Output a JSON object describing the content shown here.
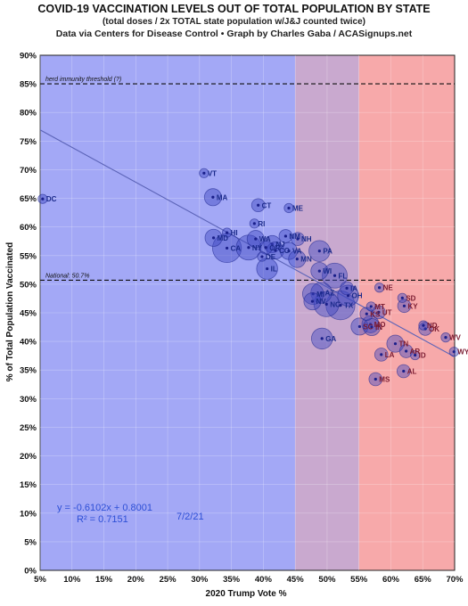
{
  "header": {
    "title": "COVID-19 VACCINATION LEVELS OUT OF TOTAL POPULATION BY STATE",
    "subtitle": "(total doses / 2x TOTAL state population w/J&J counted twice)",
    "source": "Data via Centers for Disease Control • Graph by Charles Gaba / ACASignups.net"
  },
  "colors": {
    "blue_zone": "#a3a8f6",
    "purple_zone": "#c9a9cf",
    "red_zone": "#f7a9aa",
    "bubble_fill": "#3f48c2",
    "bubble_stroke": "#1e2790",
    "trend_line": "#5c64b8"
  },
  "chart_data": {
    "type": "scatter",
    "xlabel": "2020 Trump Vote %",
    "ylabel": "% of Total Population Vaccinated",
    "xlim": [
      5,
      70
    ],
    "ylim": [
      0,
      90
    ],
    "x_ticks": [
      "5%",
      "10%",
      "15%",
      "20%",
      "25%",
      "30%",
      "35%",
      "40%",
      "45%",
      "50%",
      "55%",
      "60%",
      "65%",
      "70%"
    ],
    "y_ticks": [
      "0%",
      "5%",
      "10%",
      "15%",
      "20%",
      "25%",
      "30%",
      "35%",
      "40%",
      "45%",
      "50%",
      "55%",
      "60%",
      "65%",
      "70%",
      "75%",
      "80%",
      "85%",
      "90%"
    ],
    "zones": [
      {
        "from": 5,
        "to": 45,
        "color": "blue_zone"
      },
      {
        "from": 45,
        "to": 55,
        "color": "purple_zone"
      },
      {
        "from": 55,
        "to": 70,
        "color": "red_zone"
      }
    ],
    "reference_lines": [
      {
        "y": 85,
        "label": "herd immunity threshold (?)"
      },
      {
        "y": 50.7,
        "label": "National: 50.7%"
      }
    ],
    "trendline": {
      "slope": -0.6102,
      "intercept": 0.8001,
      "equation": "y = -0.6102x + 0.8001",
      "r2": "R² = 0.7151"
    },
    "date_label": "7/2/21",
    "points": [
      {
        "label": "DC",
        "x": 5.4,
        "y": 64.9,
        "size": 1
      },
      {
        "label": "VT",
        "x": 30.7,
        "y": 69.4,
        "size": 1
      },
      {
        "label": "MA",
        "x": 32.1,
        "y": 65.2,
        "size": 3
      },
      {
        "label": "CT",
        "x": 39.2,
        "y": 63.8,
        "size": 2
      },
      {
        "label": "ME",
        "x": 44.0,
        "y": 63.3,
        "size": 1
      },
      {
        "label": "RI",
        "x": 38.6,
        "y": 60.6,
        "size": 1
      },
      {
        "label": "HI",
        "x": 34.3,
        "y": 59.0,
        "size": 1
      },
      {
        "label": "MD",
        "x": 32.2,
        "y": 58.1,
        "size": 3
      },
      {
        "label": "NM",
        "x": 43.5,
        "y": 58.4,
        "size": 2
      },
      {
        "label": "NH",
        "x": 45.4,
        "y": 57.9,
        "size": 2
      },
      {
        "label": "WA",
        "x": 38.8,
        "y": 57.9,
        "size": 3
      },
      {
        "label": "NJ",
        "x": 41.4,
        "y": 57.0,
        "size": 3
      },
      {
        "label": "NY",
        "x": 37.7,
        "y": 56.4,
        "size": 5
      },
      {
        "label": "CA",
        "x": 34.3,
        "y": 56.3,
        "size": 6
      },
      {
        "label": "CO",
        "x": 41.9,
        "y": 55.9,
        "size": 3
      },
      {
        "label": "OR",
        "x": 40.4,
        "y": 56.4,
        "size": 2
      },
      {
        "label": "VA",
        "x": 44.0,
        "y": 55.8,
        "size": 3
      },
      {
        "label": "DE",
        "x": 39.8,
        "y": 54.8,
        "size": 1
      },
      {
        "label": "MN",
        "x": 45.3,
        "y": 54.4,
        "size": 3
      },
      {
        "label": "PA",
        "x": 48.8,
        "y": 55.8,
        "size": 4
      },
      {
        "label": "IL",
        "x": 40.6,
        "y": 52.7,
        "size": 4
      },
      {
        "label": "WI",
        "x": 48.8,
        "y": 52.3,
        "size": 3
      },
      {
        "label": "FL",
        "x": 51.2,
        "y": 51.5,
        "size": 5
      },
      {
        "label": "IA",
        "x": 53.1,
        "y": 49.3,
        "size": 2
      },
      {
        "label": "AZ",
        "x": 49.1,
        "y": 48.5,
        "size": 4
      },
      {
        "label": "NV",
        "x": 47.7,
        "y": 47.0,
        "size": 3
      },
      {
        "label": "OH",
        "x": 53.3,
        "y": 48.0,
        "size": 4
      },
      {
        "label": "MI",
        "x": 47.8,
        "y": 48.3,
        "size": 4
      },
      {
        "label": "TX",
        "x": 52.1,
        "y": 46.3,
        "size": 6
      },
      {
        "label": "NC",
        "x": 49.9,
        "y": 46.5,
        "size": 5
      },
      {
        "label": "NE",
        "x": 58.2,
        "y": 49.4,
        "size": 1
      },
      {
        "label": "MT",
        "x": 56.9,
        "y": 46.1,
        "size": 1
      },
      {
        "label": "UT",
        "x": 58.1,
        "y": 45.1,
        "size": 2
      },
      {
        "label": "KS",
        "x": 56.2,
        "y": 44.8,
        "size": 2
      },
      {
        "label": "SD",
        "x": 61.8,
        "y": 47.6,
        "size": 1
      },
      {
        "label": "KY",
        "x": 62.1,
        "y": 46.2,
        "size": 2
      },
      {
        "label": "MO",
        "x": 56.8,
        "y": 43.0,
        "size": 3
      },
      {
        "label": "SC",
        "x": 55.1,
        "y": 42.6,
        "size": 3
      },
      {
        "label": "IN",
        "x": 57.0,
        "y": 42.5,
        "size": 3
      },
      {
        "label": "ND",
        "x": 65.1,
        "y": 42.8,
        "size": 1
      },
      {
        "label": "OK",
        "x": 65.4,
        "y": 42.2,
        "size": 2
      },
      {
        "label": "WV",
        "x": 68.6,
        "y": 40.7,
        "size": 1
      },
      {
        "label": "GA",
        "x": 49.2,
        "y": 40.5,
        "size": 4
      },
      {
        "label": "TN",
        "x": 60.7,
        "y": 39.6,
        "size": 3
      },
      {
        "label": "AR",
        "x": 62.4,
        "y": 38.3,
        "size": 2
      },
      {
        "label": "LA",
        "x": 58.5,
        "y": 37.7,
        "size": 2
      },
      {
        "label": "ID",
        "x": 63.8,
        "y": 37.6,
        "size": 1
      },
      {
        "label": "WY",
        "x": 69.9,
        "y": 38.2,
        "size": 1
      },
      {
        "label": "AL",
        "x": 62.0,
        "y": 34.8,
        "size": 2
      },
      {
        "label": "MS",
        "x": 57.6,
        "y": 33.4,
        "size": 2
      }
    ]
  }
}
